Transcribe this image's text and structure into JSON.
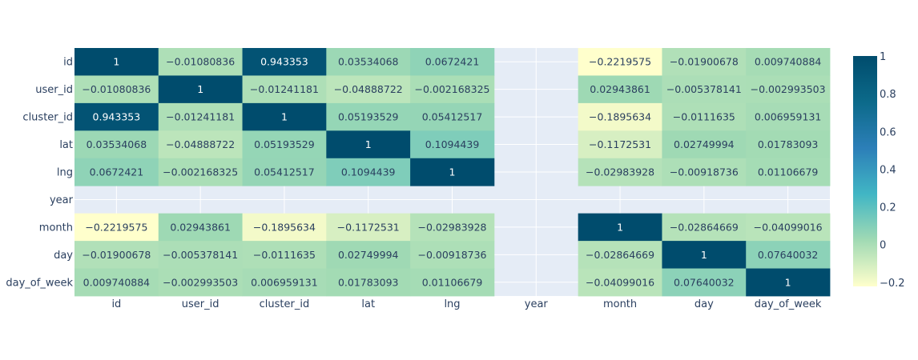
{
  "chart_data": {
    "type": "heatmap",
    "title": "",
    "xlabel": "",
    "ylabel": "",
    "x_categories": [
      "id",
      "user_id",
      "cluster_id",
      "lat",
      "lng",
      "year",
      "month",
      "day",
      "day_of_week"
    ],
    "y_categories": [
      "id",
      "user_id",
      "cluster_id",
      "lat",
      "lng",
      "year",
      "month",
      "day",
      "day_of_week"
    ],
    "values": [
      [
        1,
        -0.01080836,
        0.943353,
        0.03534068,
        0.0672421,
        null,
        -0.2219575,
        -0.01900678,
        0.009740884
      ],
      [
        -0.01080836,
        1,
        -0.01241181,
        -0.04888722,
        -0.002168325,
        null,
        0.02943861,
        -0.005378141,
        -0.002993503
      ],
      [
        0.943353,
        -0.01241181,
        1,
        0.05193529,
        0.05412517,
        null,
        -0.1895634,
        -0.0111635,
        0.006959131
      ],
      [
        0.03534068,
        -0.04888722,
        0.05193529,
        1,
        0.1094439,
        null,
        -0.1172531,
        0.02749994,
        0.01783093
      ],
      [
        0.0672421,
        -0.002168325,
        0.05412517,
        0.1094439,
        1,
        null,
        -0.02983928,
        -0.00918736,
        0.01106679
      ],
      [
        null,
        null,
        null,
        null,
        null,
        null,
        null,
        null,
        null
      ],
      [
        -0.2219575,
        0.02943861,
        -0.1895634,
        -0.1172531,
        -0.02983928,
        null,
        1,
        -0.02864669,
        -0.04099016
      ],
      [
        -0.01900678,
        -0.005378141,
        -0.0111635,
        0.02749994,
        -0.00918736,
        null,
        -0.02864669,
        1,
        0.07640032
      ],
      [
        0.009740884,
        -0.002993503,
        0.006959131,
        0.01783093,
        0.01106679,
        null,
        -0.04099016,
        0.07640032,
        1
      ]
    ],
    "text": [
      [
        "1",
        "−0.01080836",
        "0.943353",
        "0.03534068",
        "0.0672421",
        "",
        "−0.2219575",
        "−0.01900678",
        "0.009740884"
      ],
      [
        "−0.01080836",
        "1",
        "−0.01241181",
        "−0.04888722",
        "−0.002168325",
        "",
        "0.02943861",
        "−0.005378141",
        "−0.002993503"
      ],
      [
        "0.943353",
        "−0.01241181",
        "1",
        "0.05193529",
        "0.05412517",
        "",
        "−0.1895634",
        "−0.0111635",
        "0.006959131"
      ],
      [
        "0.03534068",
        "−0.04888722",
        "0.05193529",
        "1",
        "0.1094439",
        "",
        "−0.1172531",
        "0.02749994",
        "0.01783093"
      ],
      [
        "0.0672421",
        "−0.002168325",
        "0.05412517",
        "0.1094439",
        "1",
        "",
        "−0.02983928",
        "−0.00918736",
        "0.01106679"
      ],
      [
        "",
        "",
        "",
        "",
        "",
        "",
        "",
        "",
        ""
      ],
      [
        "−0.2219575",
        "0.02943861",
        "−0.1895634",
        "−0.1172531",
        "−0.02983928",
        "",
        "1",
        "−0.02864669",
        "−0.04099016"
      ],
      [
        "−0.01900678",
        "−0.005378141",
        "−0.0111635",
        "0.02749994",
        "−0.00918736",
        "",
        "−0.02864669",
        "1",
        "0.07640032"
      ],
      [
        "0.009740884",
        "−0.002993503",
        "0.006959131",
        "0.01783093",
        "0.01106679",
        "",
        "−0.04099016",
        "0.07640032",
        "1"
      ]
    ],
    "zmin": -0.2219575,
    "zmax": 1,
    "colorscale": [
      "#ffffcc",
      "#a1dab4",
      "#41b6c4",
      "#2c7fb8",
      "#0c6a8a",
      "#004c6d"
    ],
    "colorbar": {
      "ticks": [
        1,
        0.8,
        0.6,
        0.4,
        0.2,
        0,
        -0.2
      ],
      "tick_labels": [
        "1",
        "0.8",
        "0.6",
        "0.4",
        "0.2",
        "0",
        "−0.2"
      ]
    },
    "colors": {
      "plot_bg": "#e5ecf6",
      "grid": "#ffffff",
      "axis_text": "#2a3f5f"
    }
  }
}
